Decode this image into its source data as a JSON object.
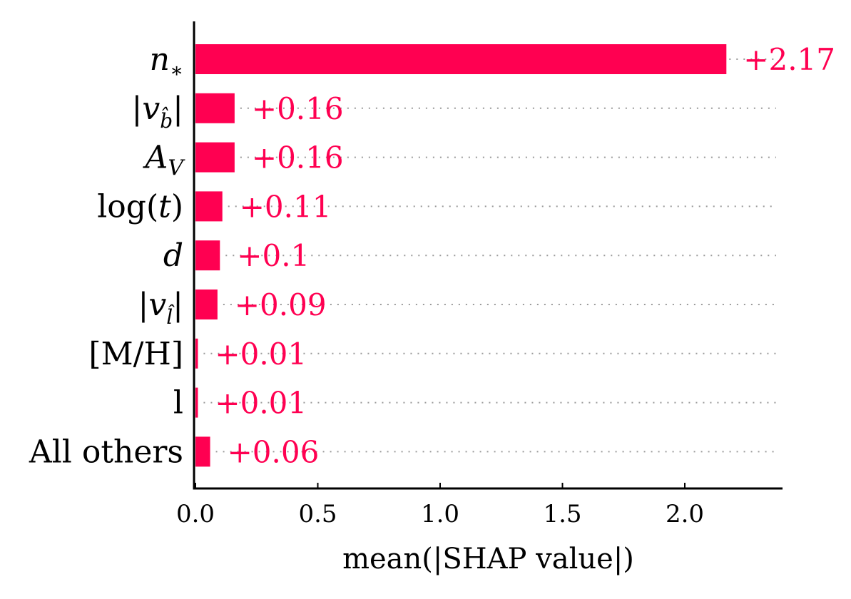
{
  "chart_data": {
    "type": "bar",
    "orientation": "horizontal",
    "categories": [
      "n*",
      "|vb̂|",
      "AV",
      "log(t)",
      "d",
      "|vl̂|",
      "[M/H]",
      "l",
      "All others"
    ],
    "values": [
      2.17,
      0.16,
      0.16,
      0.11,
      0.1,
      0.09,
      0.01,
      0.01,
      0.06
    ],
    "value_labels": [
      "+2.17",
      "+0.16",
      "+0.16",
      "+0.11",
      "+0.1",
      "+0.09",
      "+0.01",
      "+0.01",
      "+0.06"
    ],
    "xlabel": "mean(|SHAP value|)",
    "ylabel": "",
    "title": "",
    "xlim": [
      0,
      2.4
    ],
    "xticks": [
      0.0,
      0.5,
      1.0,
      1.5,
      2.0
    ],
    "xtick_labels": [
      "0.0",
      "0.5",
      "1.0",
      "1.5",
      "2.0"
    ],
    "bar_color": "#ff0051",
    "gridlines": "dotted",
    "grid_color": "#9a9a9a",
    "axis_color": "#000000"
  }
}
